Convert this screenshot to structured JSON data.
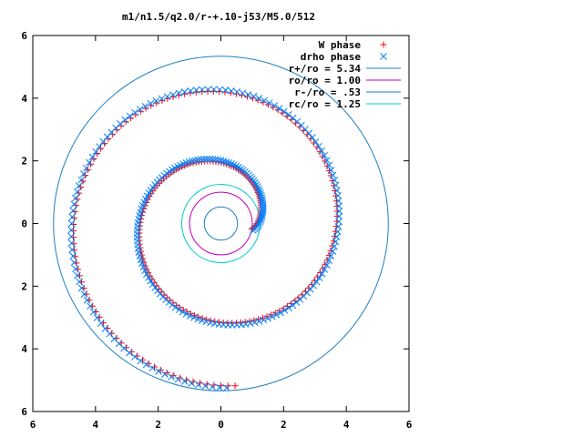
{
  "chart_data": {
    "type": "scatter",
    "title": "m1/n1.5/q2.0/r-+.10-j53/M5.0/512",
    "xlabel": "",
    "ylabel": "",
    "xlim": [
      -6,
      6
    ],
    "ylim": [
      -6,
      6
    ],
    "x_tick_labels": [
      "6",
      "4",
      "2",
      "0",
      "2",
      "4",
      "6"
    ],
    "y_tick_labels": [
      "6",
      "4",
      "2",
      "0",
      "2",
      "4",
      "6"
    ],
    "grid": false,
    "legend_position": "top-right",
    "point_series": [
      {
        "name": "W phase",
        "marker": "plus",
        "color": "#ff0000",
        "spiral": {
          "theta_deg_start": -10,
          "theta_deg_end": 635,
          "r_start": 1.0,
          "r_end": 5.2,
          "count": 260
        }
      },
      {
        "name": "drho phase",
        "marker": "cross",
        "color": "#0080ff",
        "spiral": {
          "theta_deg_start": -12,
          "theta_deg_end": 632,
          "r_start": 1.05,
          "r_end": 5.25,
          "count": 260
        }
      }
    ],
    "circles": [
      {
        "label": "r+/ro = 5.34",
        "radius": 5.34,
        "color": "#1e7fc4"
      },
      {
        "label": "ro/ro = 1.00",
        "radius": 1.0,
        "color": "#c000c0"
      },
      {
        "label": "r-/ro = .53",
        "radius": 0.53,
        "color": "#1e7fc4"
      },
      {
        "label": "rc/ro = 1.25",
        "radius": 1.25,
        "color": "#00cccc"
      }
    ]
  }
}
